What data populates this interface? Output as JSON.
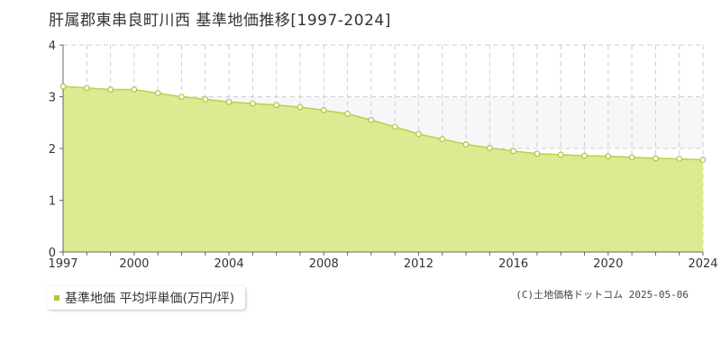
{
  "title": "肝属郡東串良町川西 基準地価推移[1997-2024]",
  "legend_label": "基準地価 平均坪単価(万円/坪)",
  "credit": "(C)土地価格ドットコム 2025-05-06",
  "colors": {
    "fill": "#dcea91",
    "line": "#b5d44a",
    "marker_stroke": "#a8c83a",
    "legend": "#a8cc3a",
    "band": "#f7f7f9"
  },
  "chart_data": {
    "type": "area",
    "title": "肝属郡東串良町川西 基準地価推移[1997-2024]",
    "x": [
      1997,
      1998,
      1999,
      2000,
      2001,
      2002,
      2003,
      2004,
      2005,
      2006,
      2007,
      2008,
      2009,
      2010,
      2011,
      2012,
      2013,
      2014,
      2015,
      2016,
      2017,
      2018,
      2019,
      2020,
      2021,
      2022,
      2023,
      2024
    ],
    "series": [
      {
        "name": "基準地価 平均坪単価(万円/坪)",
        "values": [
          3.2,
          3.17,
          3.14,
          3.14,
          3.07,
          3.0,
          2.95,
          2.9,
          2.87,
          2.84,
          2.8,
          2.74,
          2.67,
          2.55,
          2.42,
          2.28,
          2.18,
          2.08,
          2.01,
          1.95,
          1.9,
          1.88,
          1.86,
          1.85,
          1.83,
          1.81,
          1.8,
          1.78
        ]
      }
    ],
    "xlim": [
      1997,
      2024
    ],
    "ylim": [
      0,
      4
    ],
    "x_ticks": [
      "1997",
      "2000",
      "2004",
      "2008",
      "2012",
      "2016",
      "2020",
      "2024"
    ],
    "y_ticks": [
      "0",
      "1",
      "2",
      "3",
      "4"
    ],
    "grid": true
  }
}
